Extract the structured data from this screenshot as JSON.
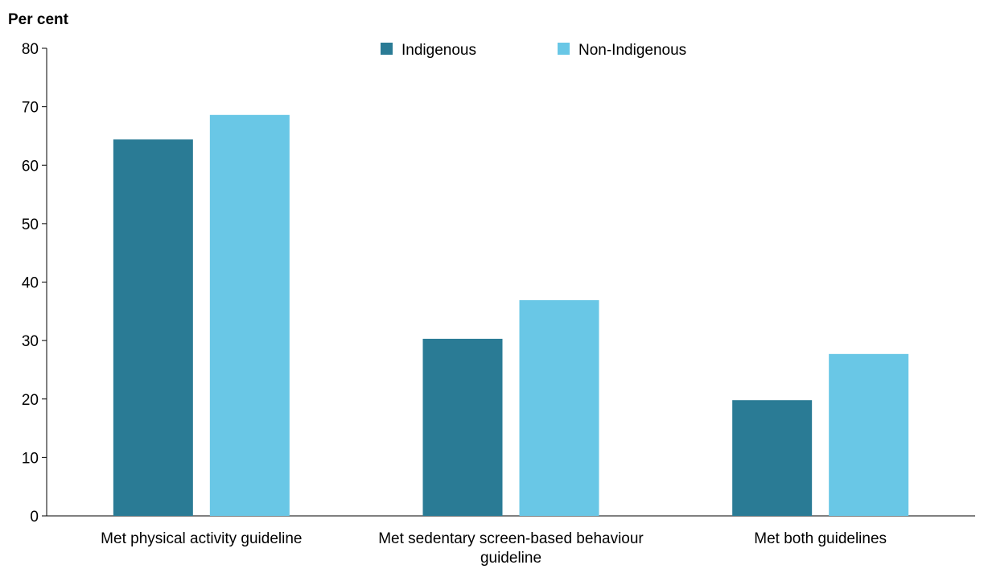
{
  "chart_data": {
    "type": "bar",
    "ylabel": "Per cent",
    "ylim": [
      0,
      80
    ],
    "yticks": [
      0,
      10,
      20,
      30,
      40,
      50,
      60,
      70,
      80
    ],
    "categories": [
      [
        "Met physical activity guideline"
      ],
      [
        "Met sedentary screen-based behaviour",
        "guideline"
      ],
      [
        "Met both guidelines"
      ]
    ],
    "series": [
      {
        "name": "Indigenous",
        "color": "#2a7b95",
        "values": [
          64.4,
          30.3,
          19.8
        ]
      },
      {
        "name": "Non-Indigenous",
        "color": "#69c7e6",
        "values": [
          68.6,
          36.9,
          27.7
        ]
      }
    ],
    "legend_position": "top-center",
    "grid": false
  }
}
